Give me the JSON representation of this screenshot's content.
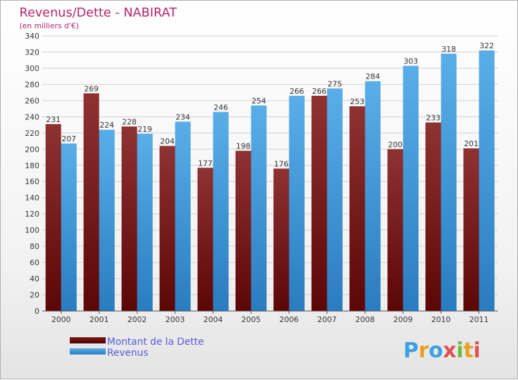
{
  "chart_data": {
    "type": "bar",
    "title": "Revenus/Dette - NABIRAT",
    "subtitle": "(en milliers d'€)",
    "categories": [
      "2000",
      "2001",
      "2002",
      "2003",
      "2004",
      "2005",
      "2006",
      "2007",
      "2008",
      "2009",
      "2010",
      "2011"
    ],
    "series": [
      {
        "name": "Montant de la Dette",
        "color": "#7a1a1a",
        "values": [
          231,
          269,
          228,
          204,
          177,
          198,
          176,
          266,
          253,
          200,
          233,
          201
        ]
      },
      {
        "name": "Revenus",
        "color": "#3d9ee6",
        "values": [
          207,
          224,
          219,
          234,
          246,
          254,
          266,
          275,
          284,
          303,
          318,
          322
        ]
      }
    ],
    "ylim": [
      0,
      340
    ],
    "yticks": [
      0,
      20,
      40,
      60,
      80,
      100,
      120,
      140,
      160,
      180,
      200,
      220,
      240,
      260,
      280,
      300,
      320,
      340
    ],
    "grid": true,
    "legend_position": "bottom-left",
    "show_data_labels": true
  },
  "logo": {
    "letters": [
      "P",
      "r",
      "o",
      "x",
      "i",
      "t",
      "i"
    ],
    "colors": [
      "#3aa0e0",
      "#e8a020",
      "#3aa0e0",
      "#e05050",
      "#70b840",
      "#e8a020",
      "#e05050"
    ]
  }
}
